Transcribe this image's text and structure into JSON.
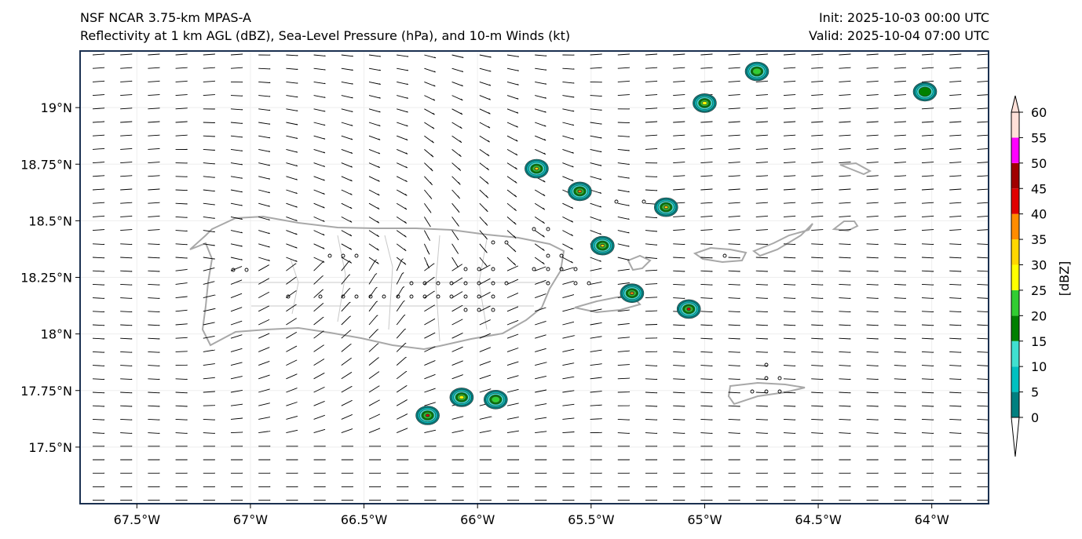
{
  "title": {
    "left_line1": "NSF NCAR 3.75-km MPAS-A",
    "left_line2": "Reflectivity at 1 km AGL (dBZ), Sea-Level Pressure (hPa), and 10-m Winds (kt)",
    "right_line1": "Init: 2025-10-03 00:00 UTC",
    "right_line2": "Valid: 2025-10-04 07:00 UTC"
  },
  "axes": {
    "lon_range": [
      -67.75,
      -63.75
    ],
    "lat_range": [
      17.25,
      19.25
    ],
    "lon_ticks": [
      {
        "value": -67.5,
        "label": "67.5°W"
      },
      {
        "value": -67.0,
        "label": "67°W"
      },
      {
        "value": -66.5,
        "label": "66.5°W"
      },
      {
        "value": -66.0,
        "label": "66°W"
      },
      {
        "value": -65.5,
        "label": "65.5°W"
      },
      {
        "value": -65.0,
        "label": "65°W"
      },
      {
        "value": -64.5,
        "label": "64.5°W"
      },
      {
        "value": -64.0,
        "label": "64°W"
      }
    ],
    "lat_ticks": [
      {
        "value": 19.0,
        "label": "19°N"
      },
      {
        "value": 18.75,
        "label": "18.75°N"
      },
      {
        "value": 18.5,
        "label": "18.5°N"
      },
      {
        "value": 18.25,
        "label": "18.25°N"
      },
      {
        "value": 18.0,
        "label": "18°N"
      },
      {
        "value": 17.75,
        "label": "17.75°N"
      },
      {
        "value": 17.5,
        "label": "17.5°N"
      }
    ]
  },
  "colorbar": {
    "label": "[dBZ]",
    "tick_labels": [
      "0",
      "5",
      "10",
      "15",
      "20",
      "25",
      "30",
      "35",
      "40",
      "45",
      "50",
      "55",
      "60"
    ],
    "colors": [
      "#008080",
      "#00c0c0",
      "#40e0d0",
      "#008000",
      "#32cd32",
      "#ffff00",
      "#ffd700",
      "#ff8c00",
      "#e00000",
      "#a00000",
      "#ff00ff",
      "#ffe0d8"
    ]
  },
  "colors": {
    "border": "#1a3050",
    "coast": "#a8a8a8",
    "barb": "#000000"
  },
  "chart_data": {
    "type": "map",
    "title": "Reflectivity at 1 km AGL (dBZ), Sea-Level Pressure (hPa), and 10-m Winds (kt)",
    "reflectivity_cells": [
      {
        "lon": -65.74,
        "lat": 18.73,
        "max_dbz": 35
      },
      {
        "lon": -65.55,
        "lat": 18.63,
        "max_dbz": 40
      },
      {
        "lon": -65.17,
        "lat": 18.56,
        "max_dbz": 35
      },
      {
        "lon": -65.45,
        "lat": 18.39,
        "max_dbz": 35
      },
      {
        "lon": -65.32,
        "lat": 18.18,
        "max_dbz": 40
      },
      {
        "lon": -65.07,
        "lat": 18.11,
        "max_dbz": 45
      },
      {
        "lon": -65.0,
        "lat": 19.02,
        "max_dbz": 30
      },
      {
        "lon": -64.77,
        "lat": 19.16,
        "max_dbz": 25
      },
      {
        "lon": -64.03,
        "lat": 19.07,
        "max_dbz": 20
      },
      {
        "lon": -66.07,
        "lat": 17.72,
        "max_dbz": 30
      },
      {
        "lon": -65.92,
        "lat": 17.71,
        "max_dbz": 25
      },
      {
        "lon": -66.22,
        "lat": 17.64,
        "max_dbz": 45
      }
    ]
  }
}
